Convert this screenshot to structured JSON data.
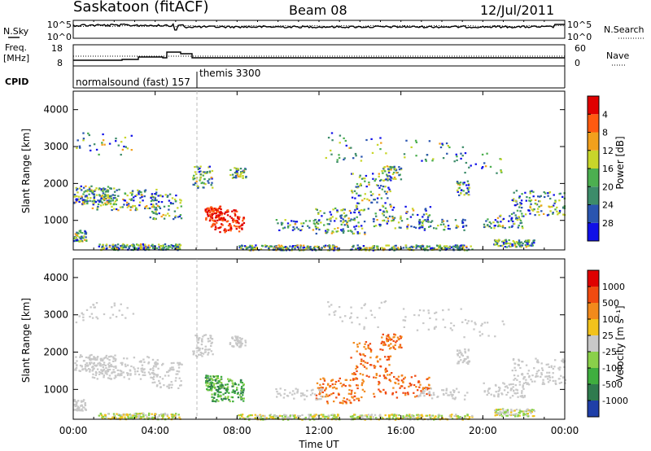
{
  "header": {
    "site": "Saskatoon (fitACF)",
    "beam": "Beam 08",
    "date": "12/Jul/2011"
  },
  "top_panels": {
    "noise_left_label": "N.Sky",
    "noise_right_label": "N.Search",
    "noise_y_top": "10^5",
    "noise_y_bottom": "10^0",
    "freq_label_1": "Freq.",
    "freq_label_2": "[MHz]",
    "freq_y_top": "18",
    "freq_y_bottom": "8",
    "nave_label": "Nave",
    "nave_y_top": "60",
    "nave_y_bottom": "0",
    "cpid_label": "CPID",
    "cpid_1": "normalsound (fast) 157",
    "cpid_2": "themis 3300"
  },
  "chart_data": [
    {
      "type": "heatmap",
      "ylabel": "Slant Range [km]",
      "yticks": [
        1000,
        2000,
        3000,
        4000
      ],
      "colorbar": {
        "label": "Power [dB]",
        "ticks": [
          "4",
          "8",
          "12",
          "16",
          "20",
          "24",
          "28"
        ],
        "colors": [
          "#1010e8",
          "#2a55b0",
          "#3d8c6a",
          "#4caf50",
          "#c8d62a",
          "#f2a01c",
          "#ff5a10",
          "#e00000"
        ]
      }
    },
    {
      "type": "heatmap",
      "ylabel": "Slant Range [km]",
      "yticks": [
        1000,
        2000,
        3000,
        4000
      ],
      "colorbar": {
        "label": "Velocity [m s⁻¹]",
        "ticks": [
          "1000",
          "500",
          "100",
          "25",
          "-25",
          "-100",
          "-500",
          "-1000"
        ],
        "colors": [
          "#1f3fa8",
          "#2f7b4e",
          "#3fae3f",
          "#8ad04a",
          "#c8c8c8",
          "#f2c21c",
          "#f28a1c",
          "#f04a10",
          "#e00000"
        ]
      }
    }
  ],
  "xaxis": {
    "label": "Time UT",
    "ticks": [
      "00:00",
      "04:00",
      "08:00",
      "12:00",
      "16:00",
      "20:00",
      "00:00"
    ]
  }
}
